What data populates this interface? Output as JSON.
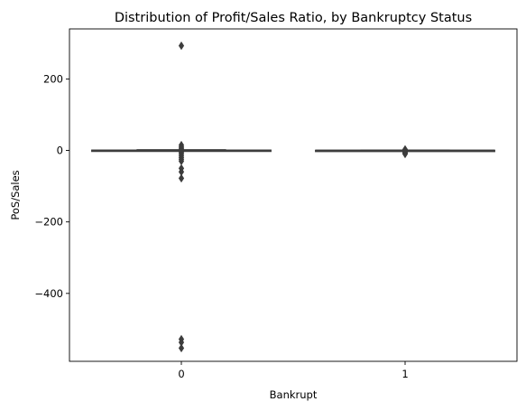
{
  "chart_data": {
    "type": "box",
    "title": "Distribution of Profit/Sales Ratio, by Bankruptcy Status",
    "xlabel": "Bankrupt",
    "ylabel": "PoS/Sales",
    "categories": [
      "0",
      "1"
    ],
    "ylim": [
      -590,
      340
    ],
    "yticks": [
      {
        "value": 200,
        "label": "200"
      },
      {
        "value": 0,
        "label": "0"
      },
      {
        "value": -200,
        "label": "−200"
      },
      {
        "value": -400,
        "label": "−400"
      }
    ],
    "grid": false,
    "legend": "none",
    "color": "#3d3d3d",
    "boxes": [
      {
        "category": "0",
        "q1": -0.5,
        "median": 0.1,
        "q3": 0.6,
        "whisker_low": -1.5,
        "whisker_high": 1.8,
        "outliers": [
          293,
          15,
          10,
          6,
          3,
          -3,
          -6,
          -10,
          -15,
          -20,
          -25,
          -30,
          -50,
          -60,
          -78,
          -528,
          -537,
          -553
        ]
      },
      {
        "category": "1",
        "q1": -0.2,
        "median": 0.0,
        "q3": 0.2,
        "whisker_low": -0.8,
        "whisker_high": 0.8,
        "outliers": [
          3,
          1.5,
          -2,
          -4,
          -6,
          -8,
          -10
        ]
      }
    ]
  }
}
